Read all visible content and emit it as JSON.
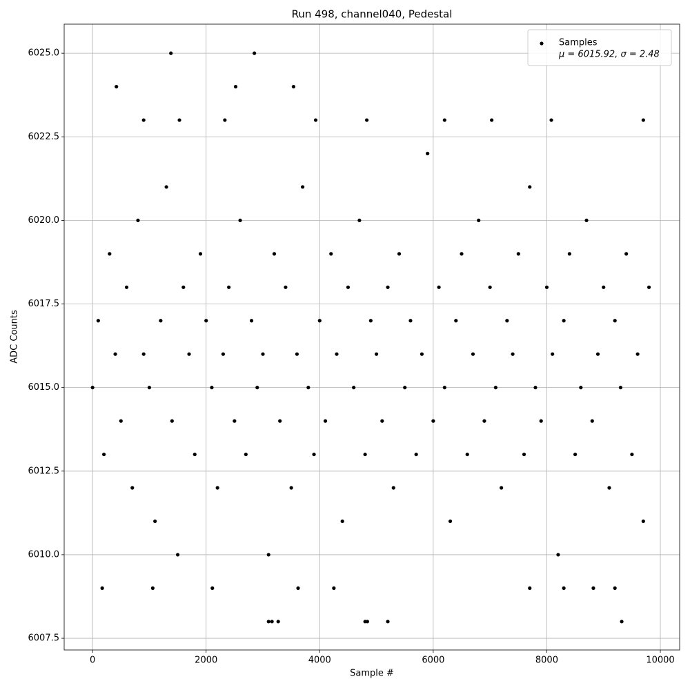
{
  "chart_data": {
    "type": "scatter",
    "title": "Run 498, channel040, Pedestal",
    "x_label": "Sample #",
    "y_label": "ADC Counts",
    "xlim": [
      -500,
      10340
    ],
    "ylim": [
      6007.15,
      6025.87
    ],
    "xticks": [
      0,
      2000,
      4000,
      6000,
      8000,
      10000
    ],
    "yticks": [
      6007.5,
      {
        "value": 6010,
        "label": "6010.0"
      },
      6012.5,
      {
        "value": 6015,
        "label": "6015.0"
      },
      6017.5,
      {
        "value": 6020,
        "label": "6020.0"
      },
      6022.5,
      {
        "value": 6025,
        "label": "6025.0"
      }
    ],
    "grid": true,
    "legend": "upper right",
    "series": [
      {
        "name": "Samples",
        "label": "μ = 6015.92, σ = 2.48",
        "color": "#000000",
        "x": [
          0,
          100,
          200,
          300,
          400,
          500,
          600,
          700,
          800,
          900,
          1000,
          1100,
          1200,
          1300,
          1400,
          1500,
          1600,
          1700,
          1800,
          1900,
          2000,
          2100,
          2200,
          2300,
          2400,
          2500,
          2600,
          2700,
          2800,
          2900,
          3000,
          3100,
          3200,
          3300,
          3400,
          3500,
          3600,
          3700,
          3800,
          3900,
          4000,
          4100,
          4200,
          4300,
          4400,
          4500,
          4600,
          4700,
          4800,
          4900,
          5000,
          5100,
          5200,
          5300,
          5400,
          5500,
          5600,
          5700,
          5800,
          5900,
          6000,
          6100,
          6200,
          6300,
          6400,
          6500,
          6600,
          6700,
          6800,
          6900,
          7000,
          7100,
          7200,
          7300,
          7400,
          7500,
          7600,
          7700,
          7800,
          7900,
          8000,
          8100,
          8200,
          8300,
          8400,
          8500,
          8600,
          8700,
          8800,
          8900,
          9000,
          9100,
          9200,
          9300,
          9400,
          9500,
          9600,
          9700,
          9800,
          420,
          1380,
          2520,
          2850,
          3540,
          3100,
          3160,
          3270,
          4800,
          4840,
          5200,
          9320,
          170,
          1060,
          2110,
          3620,
          4250,
          7700,
          8300,
          8820,
          9200,
          900,
          1530,
          2330,
          3930,
          4830,
          6200,
          7030,
          8080,
          9700
        ],
        "values": [
          6015,
          6017,
          6013,
          6019,
          6016,
          6014,
          6018,
          6012,
          6020,
          6016,
          6015,
          6011,
          6017,
          6021,
          6014,
          6010,
          6018,
          6016,
          6013,
          6019,
          6017,
          6015,
          6012,
          6016,
          6018,
          6014,
          6020,
          6013,
          6017,
          6015,
          6016,
          6010,
          6019,
          6014,
          6018,
          6012,
          6016,
          6021,
          6015,
          6013,
          6017,
          6014,
          6019,
          6016,
          6011,
          6018,
          6015,
          6020,
          6013,
          6017,
          6016,
          6014,
          6018,
          6012,
          6019,
          6015,
          6017,
          6013,
          6016,
          6022,
          6014,
          6018,
          6015,
          6011,
          6017,
          6019,
          6013,
          6016,
          6020,
          6014,
          6018,
          6015,
          6012,
          6017,
          6016,
          6019,
          6013,
          6021,
          6015,
          6014,
          6018,
          6016,
          6010,
          6017,
          6019,
          6013,
          6015,
          6020,
          6014,
          6016,
          6018,
          6012,
          6017,
          6015,
          6019,
          6013,
          6016,
          6011,
          6018,
          6024,
          6025,
          6024,
          6025,
          6024,
          6008,
          6008,
          6008,
          6008,
          6008,
          6008,
          6008,
          6009,
          6009,
          6009,
          6009,
          6009,
          6009,
          6009,
          6009,
          6009,
          6023,
          6023,
          6023,
          6023,
          6023,
          6023,
          6023,
          6023,
          6023
        ]
      }
    ]
  }
}
